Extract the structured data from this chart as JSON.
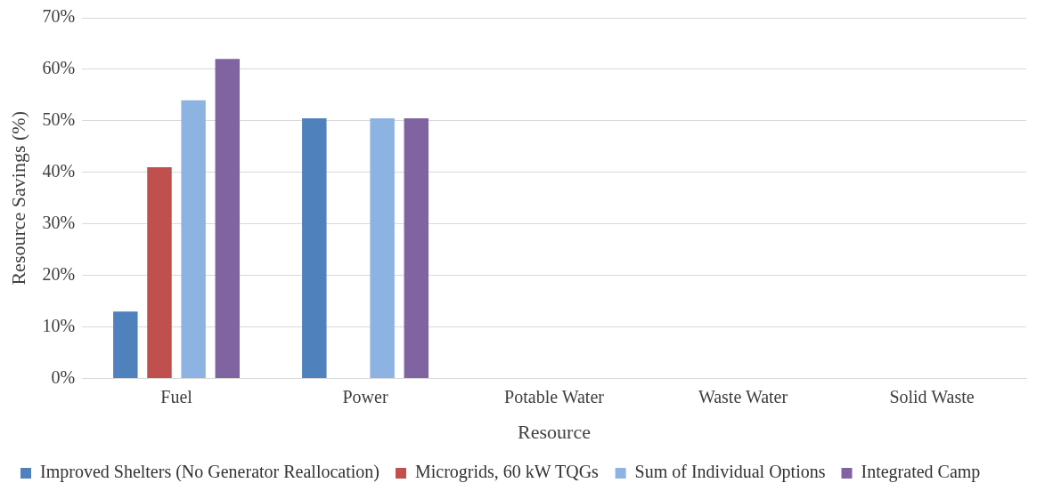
{
  "chart_data": {
    "type": "bar",
    "xlabel": "Resource",
    "ylabel": "Resource Savings (%)",
    "categories": [
      "Fuel",
      "Power",
      "Potable Water",
      "Waste Water",
      "Solid Waste"
    ],
    "series": [
      {
        "name": "Improved Shelters (No Generator Reallocation)",
        "color": "#4f81bd",
        "values": [
          13,
          50.5,
          0,
          0,
          0
        ]
      },
      {
        "name": "Microgrids, 60 kW TQGs",
        "color": "#c0504d",
        "values": [
          41,
          0,
          0,
          0,
          0
        ]
      },
      {
        "name": "Sum of Individual Options",
        "color": "#8db3e2",
        "values": [
          54,
          50.5,
          0,
          0,
          0
        ]
      },
      {
        "name": "Integrated Camp",
        "color": "#8064a2",
        "values": [
          62,
          50.5,
          0,
          0,
          0
        ]
      }
    ],
    "ylim": [
      0,
      70
    ],
    "yticks": [
      {
        "value": 0,
        "label": "0%"
      },
      {
        "value": 10,
        "label": "10%"
      },
      {
        "value": 20,
        "label": "20%"
      },
      {
        "value": 30,
        "label": "30%"
      },
      {
        "value": 40,
        "label": "40%"
      },
      {
        "value": 50,
        "label": "50%"
      },
      {
        "value": 60,
        "label": "60%"
      },
      {
        "value": 70,
        "label": "70%"
      }
    ],
    "grid": "y",
    "legend": "bottom"
  }
}
